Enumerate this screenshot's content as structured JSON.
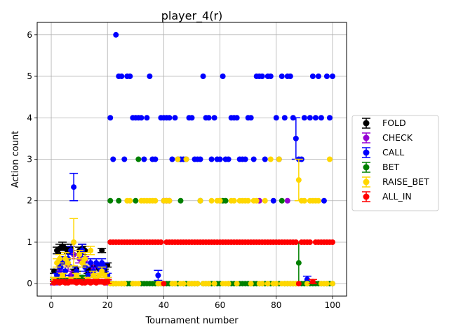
{
  "chart_data": {
    "type": "scatter",
    "title": "player_4(r)",
    "xlabel": "Tournament number",
    "ylabel": "Action count",
    "xlim": [
      -5,
      105
    ],
    "ylim": [
      -0.3,
      6.3
    ],
    "xticks": [
      0,
      20,
      40,
      60,
      80,
      100
    ],
    "yticks": [
      0,
      1,
      2,
      3,
      4,
      5,
      6
    ],
    "grid": true,
    "legend_position": "center-right",
    "series": [
      {
        "name": "FOLD",
        "color": "#000000",
        "x": [
          1,
          2,
          3,
          4,
          5,
          6,
          7,
          8,
          9,
          10,
          11,
          12,
          13,
          14,
          15,
          16,
          17,
          18,
          19,
          20
        ],
        "y": [
          0.3,
          0.8,
          0.85,
          0.9,
          0.85,
          0.8,
          0.85,
          0.3,
          0.35,
          0.8,
          0.85,
          0.8,
          0.3,
          0.35,
          0.4,
          0.4,
          0.35,
          0.8,
          0.3,
          0.45
        ],
        "err": [
          0.05,
          0.08,
          0.1,
          0.1,
          0.1,
          0.08,
          0.1,
          0.05,
          0.05,
          0.08,
          0.1,
          0.1,
          0.05,
          0.05,
          0.05,
          0.05,
          0.05,
          0.05,
          0.05,
          0.05
        ]
      },
      {
        "name": "CHECK",
        "color": "#9400d3",
        "x": [
          1,
          2,
          3,
          4,
          5,
          6,
          7,
          8,
          9,
          10,
          11,
          12,
          13,
          14,
          15,
          16,
          17,
          18,
          19,
          20,
          40,
          41,
          42,
          60,
          74,
          84
        ],
        "y": [
          0.02,
          0.05,
          0.3,
          0.05,
          0.1,
          0.45,
          0.2,
          0.7,
          0.15,
          0.6,
          0.1,
          0.55,
          0.05,
          0.5,
          0.35,
          0.1,
          0.05,
          0.4,
          0.05,
          0.02,
          2,
          2,
          2,
          2,
          2,
          2
        ],
        "err": [
          0.05,
          0.05,
          0.1,
          0.05,
          0.1,
          0.15,
          0.1,
          0.1,
          0.05,
          0.1,
          0.05,
          0.1,
          0.05,
          0.1,
          0.1,
          0.05,
          0.05,
          0.1,
          0.05,
          0.05,
          0,
          0,
          0,
          0,
          0,
          0
        ]
      },
      {
        "name": "CALL",
        "color": "#0000ff",
        "x": [
          1,
          2,
          3,
          4,
          5,
          6,
          7,
          8,
          9,
          10,
          11,
          12,
          13,
          14,
          15,
          16,
          17,
          18,
          19,
          20,
          21,
          22,
          23,
          24,
          25,
          26,
          27,
          28,
          29,
          30,
          31,
          32,
          33,
          34,
          35,
          36,
          37,
          38,
          39,
          40,
          41,
          42,
          43,
          44,
          45,
          46,
          47,
          48,
          49,
          50,
          51,
          52,
          53,
          54,
          55,
          56,
          57,
          58,
          59,
          60,
          61,
          62,
          63,
          64,
          65,
          66,
          67,
          68,
          69,
          70,
          71,
          72,
          73,
          74,
          75,
          76,
          77,
          78,
          79,
          80,
          81,
          82,
          83,
          84,
          85,
          86,
          87,
          88,
          89,
          90,
          91,
          92,
          93,
          94,
          95,
          96,
          97,
          98,
          99,
          100
        ],
        "y": [
          0.1,
          0.2,
          0.4,
          0.5,
          0.3,
          0.6,
          0.8,
          2.33,
          0.3,
          0.7,
          0.8,
          0.4,
          0.2,
          0.5,
          0.3,
          0.5,
          0.4,
          0.5,
          0.4,
          0.2,
          4,
          3,
          6,
          5,
          5,
          3,
          5,
          5,
          4,
          4,
          4,
          4,
          3,
          4,
          5,
          3,
          3,
          0.2,
          4,
          4,
          4,
          4,
          3,
          4,
          3,
          3,
          3,
          3,
          4,
          4,
          3,
          3,
          3,
          5,
          4,
          4,
          3,
          4,
          3,
          3,
          5,
          3,
          3,
          4,
          4,
          4,
          3,
          3,
          3,
          4,
          4,
          3,
          5,
          5,
          5,
          3,
          5,
          5,
          2,
          4,
          3,
          5,
          4,
          5,
          5,
          4,
          3.5,
          3,
          3,
          4,
          0.1,
          4,
          5,
          4,
          5,
          4,
          2,
          5,
          4,
          5
        ],
        "err": [
          0.05,
          0.05,
          0.1,
          0.15,
          0.1,
          0.15,
          0.1,
          0.33,
          0.1,
          0.1,
          0.15,
          0.1,
          0.1,
          0.1,
          0.1,
          0.1,
          0.1,
          0.1,
          0.1,
          0.05,
          0,
          0,
          0,
          0,
          0,
          0,
          0,
          0,
          0,
          0,
          0,
          0,
          0,
          0,
          0,
          0,
          0,
          0.12,
          0,
          0,
          0,
          0,
          0,
          0,
          0,
          0,
          0,
          0,
          0,
          0,
          0,
          0,
          0,
          0,
          0,
          0,
          0,
          0,
          0,
          0,
          0,
          0,
          0,
          0,
          0,
          0,
          0,
          0,
          0,
          0,
          0,
          0,
          0,
          0,
          0,
          0,
          0,
          0,
          0,
          0,
          0,
          0,
          0,
          0,
          0,
          0,
          0.5,
          0,
          0,
          0,
          0.08,
          0,
          0,
          0,
          0,
          0,
          0,
          0,
          0,
          0
        ]
      },
      {
        "name": "BET",
        "color": "#008000",
        "x": [
          1,
          2,
          3,
          4,
          5,
          6,
          7,
          8,
          9,
          10,
          11,
          12,
          13,
          14,
          15,
          16,
          17,
          18,
          19,
          20,
          21,
          22,
          23,
          24,
          25,
          26,
          27,
          28,
          29,
          30,
          31,
          32,
          33,
          34,
          35,
          36,
          37,
          38,
          39,
          40,
          41,
          42,
          43,
          44,
          45,
          46,
          47,
          48,
          49,
          50,
          51,
          52,
          53,
          54,
          55,
          56,
          57,
          58,
          59,
          60,
          61,
          62,
          63,
          64,
          65,
          66,
          67,
          68,
          69,
          70,
          71,
          72,
          73,
          74,
          75,
          76,
          77,
          78,
          79,
          80,
          81,
          82,
          83,
          84,
          85,
          86,
          87,
          88,
          89,
          90,
          91,
          92,
          93,
          94,
          95,
          96,
          97,
          98,
          99,
          100
        ],
        "y": [
          0.05,
          0.1,
          0.05,
          0.1,
          0.05,
          0.1,
          0.05,
          0.1,
          0.05,
          0.1,
          0.15,
          0.05,
          0.1,
          0.05,
          0.05,
          0.1,
          0.05,
          0.05,
          0.05,
          0.05,
          2,
          0,
          0,
          2,
          0,
          0,
          0,
          0,
          0,
          2,
          3,
          0,
          0,
          0,
          0,
          0,
          0,
          0,
          0,
          0,
          0,
          0,
          0,
          0,
          0,
          2,
          0,
          0,
          0,
          0,
          0,
          0,
          2,
          0,
          0,
          0,
          0,
          0,
          0,
          0,
          2,
          2,
          0,
          0,
          0,
          0,
          0,
          0,
          0,
          0,
          0,
          0,
          0,
          0,
          0,
          0,
          0,
          0,
          0,
          0,
          0,
          2,
          0,
          0,
          0,
          0,
          0,
          0.5,
          0,
          0,
          0,
          0,
          0,
          0,
          0,
          0,
          0,
          0,
          0,
          0
        ],
        "err": [
          0.05,
          0.05,
          0.05,
          0.05,
          0.05,
          0.05,
          0.05,
          0.05,
          0.05,
          0.05,
          0.05,
          0.05,
          0.05,
          0.05,
          0.05,
          0.05,
          0.05,
          0.05,
          0.05,
          0.05,
          0,
          0,
          0,
          0,
          0,
          0,
          0,
          0,
          0,
          0,
          0,
          0,
          0,
          0,
          0,
          0,
          0,
          0,
          0,
          0,
          0,
          0,
          0,
          0,
          0,
          0,
          0,
          0,
          0,
          0,
          0,
          0,
          0,
          0,
          0,
          0,
          0,
          0,
          0,
          0,
          0,
          0,
          0,
          0,
          0,
          0,
          0,
          0,
          0,
          0,
          0,
          0,
          0,
          0,
          0,
          0,
          0,
          0,
          0,
          0,
          0,
          0,
          0,
          0,
          0,
          0,
          0,
          0.5,
          0,
          0,
          0,
          0,
          0,
          0,
          0,
          0,
          0,
          0,
          0,
          0
        ]
      },
      {
        "name": "RAISE_BET",
        "color": "#ffd700",
        "x": [
          1,
          2,
          3,
          4,
          5,
          6,
          7,
          8,
          9,
          10,
          11,
          12,
          13,
          14,
          15,
          16,
          17,
          18,
          19,
          20,
          21,
          22,
          23,
          24,
          25,
          26,
          27,
          28,
          29,
          30,
          31,
          32,
          33,
          34,
          35,
          36,
          37,
          38,
          39,
          40,
          41,
          42,
          43,
          44,
          45,
          46,
          47,
          48,
          49,
          50,
          51,
          52,
          53,
          54,
          55,
          56,
          57,
          58,
          59,
          60,
          61,
          62,
          63,
          64,
          65,
          66,
          67,
          68,
          69,
          70,
          71,
          72,
          73,
          74,
          75,
          76,
          77,
          78,
          79,
          80,
          81,
          82,
          83,
          84,
          85,
          86,
          87,
          88,
          89,
          90,
          91,
          92,
          93,
          94,
          95,
          96,
          97,
          98,
          99,
          100
        ],
        "y": [
          0.1,
          0.5,
          0.6,
          0.2,
          0.6,
          0.5,
          0.1,
          1.0,
          0.2,
          0.7,
          0.5,
          0.6,
          0.1,
          0.8,
          0.2,
          0.1,
          0.2,
          0.3,
          0.2,
          0.1,
          0,
          0,
          0,
          0,
          0,
          0,
          2,
          2,
          0,
          0,
          0,
          2,
          2,
          2,
          2,
          2,
          2,
          0,
          0,
          2,
          2,
          2,
          0,
          0,
          3,
          0,
          0,
          3,
          0,
          0,
          0,
          0,
          2,
          0,
          0,
          0,
          2,
          0,
          2,
          2,
          0,
          0,
          0,
          2,
          2,
          0,
          2,
          2,
          2,
          2,
          0,
          2,
          2,
          0,
          0,
          2,
          0,
          3,
          0,
          0,
          3,
          0,
          0,
          0,
          0,
          0,
          0,
          2.5,
          2,
          2,
          0,
          2,
          2,
          2,
          2,
          0,
          0,
          0,
          3,
          0
        ],
        "err": [
          0.05,
          0.1,
          0.1,
          0.05,
          0.15,
          0.1,
          0.05,
          0.57,
          0.05,
          0.1,
          0.1,
          0.15,
          0.05,
          0.1,
          0.1,
          0.05,
          0.05,
          0.1,
          0.05,
          0.05,
          0,
          0,
          0,
          0,
          0,
          0,
          0,
          0,
          0,
          0,
          0,
          0,
          0,
          0,
          0,
          0,
          0,
          0,
          0,
          0,
          0,
          0,
          0,
          0,
          0,
          0,
          0,
          0,
          0,
          0,
          0,
          0,
          0,
          0,
          0,
          0,
          0,
          0,
          0,
          0,
          0,
          0,
          0,
          0,
          0,
          0,
          0,
          0,
          0,
          0,
          0,
          0,
          0,
          0,
          0,
          0,
          0,
          0,
          0,
          0,
          0,
          0,
          0,
          0,
          0,
          0,
          0,
          0.5,
          0,
          0,
          0,
          0,
          0,
          0,
          0,
          0,
          0,
          0,
          0,
          0
        ]
      },
      {
        "name": "ALL_IN",
        "color": "#ff0000",
        "x": [
          1,
          2,
          3,
          4,
          5,
          6,
          7,
          8,
          9,
          10,
          11,
          12,
          13,
          14,
          15,
          16,
          17,
          18,
          19,
          20,
          21,
          22,
          23,
          24,
          25,
          26,
          27,
          28,
          29,
          30,
          31,
          32,
          33,
          34,
          35,
          36,
          37,
          38,
          39,
          40,
          41,
          42,
          43,
          44,
          45,
          46,
          47,
          48,
          49,
          50,
          51,
          52,
          53,
          54,
          55,
          56,
          57,
          58,
          59,
          60,
          61,
          62,
          63,
          64,
          65,
          66,
          67,
          68,
          69,
          70,
          71,
          72,
          73,
          74,
          75,
          76,
          77,
          78,
          79,
          80,
          81,
          82,
          83,
          84,
          85,
          86,
          87,
          88,
          89,
          90,
          91,
          92,
          93,
          94,
          95,
          96,
          97,
          98,
          99,
          100
        ],
        "y": [
          0.02,
          0.05,
          0.02,
          0.05,
          0.02,
          0.02,
          0.05,
          0.05,
          0.02,
          0.05,
          0.02,
          0.02,
          0.05,
          0.02,
          0.05,
          0.02,
          0.05,
          0.05,
          0.02,
          0.05,
          1,
          1,
          1,
          1,
          1,
          1,
          1,
          1,
          1,
          1,
          1,
          1,
          1,
          1,
          1,
          1,
          1,
          1,
          1,
          0,
          1,
          1,
          1,
          1,
          1,
          1,
          1,
          1,
          1,
          1,
          1,
          1,
          1,
          1,
          1,
          1,
          1,
          1,
          1,
          1,
          1,
          1,
          1,
          1,
          1,
          1,
          1,
          1,
          1,
          1,
          1,
          1,
          1,
          1,
          1,
          1,
          1,
          1,
          1,
          1,
          1,
          1,
          1,
          1,
          1,
          1,
          1,
          0,
          1,
          1,
          1,
          1,
          0.05,
          1,
          1,
          1,
          1,
          1,
          1,
          1
        ],
        "err": [
          0.03,
          0.05,
          0.03,
          0.05,
          0.03,
          0.03,
          0.05,
          0.05,
          0.03,
          0.05,
          0.03,
          0.03,
          0.05,
          0.03,
          0.05,
          0.03,
          0.05,
          0.05,
          0.03,
          0.05,
          0,
          0,
          0,
          0,
          0,
          0,
          0,
          0,
          0,
          0,
          0,
          0,
          0,
          0,
          0,
          0,
          0,
          0,
          0,
          0,
          0,
          0,
          0,
          0,
          0,
          0,
          0,
          0,
          0,
          0,
          0,
          0,
          0,
          0,
          0,
          0,
          0,
          0,
          0,
          0,
          0,
          0,
          0,
          0,
          0,
          0,
          0,
          0,
          0,
          0,
          0,
          0,
          0,
          0,
          0,
          0,
          0,
          0,
          0,
          0,
          0,
          0,
          0,
          0,
          0,
          0,
          0,
          0,
          0,
          0,
          0,
          0,
          0.05,
          0,
          0,
          0,
          0,
          0,
          0,
          0
        ]
      }
    ]
  }
}
